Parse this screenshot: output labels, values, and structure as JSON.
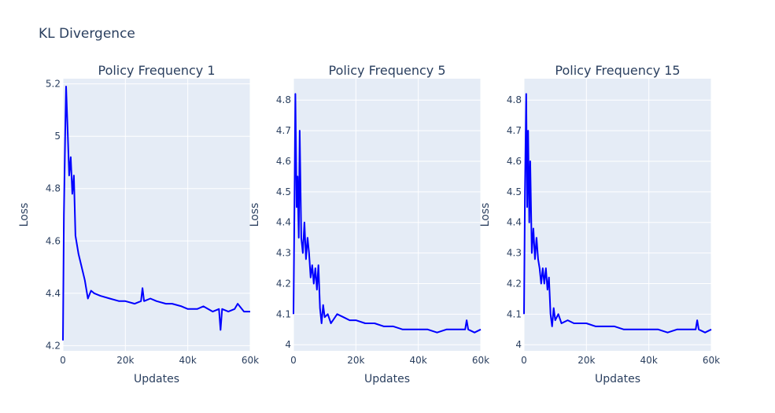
{
  "title": "KL Divergence",
  "colors": {
    "plot_background": "#e5ecf6",
    "grid": "#ffffff",
    "line": "#0000ff",
    "text": "#2a3f5f"
  },
  "chart_data": [
    {
      "type": "line",
      "title": "Policy Frequency 1",
      "xlabel": "Updates",
      "ylabel": "Loss",
      "xlim": [
        0,
        60000
      ],
      "ylim": [
        4.18,
        5.22
      ],
      "xticks": [
        0,
        20000,
        40000,
        60000
      ],
      "xtick_labels": [
        "0",
        "20k",
        "40k",
        "60k"
      ],
      "yticks": [
        4.2,
        4.4,
        4.6,
        4.8,
        5,
        5.2
      ],
      "ytick_labels": [
        "4.2",
        "4.4",
        "4.6",
        "4.8",
        "5",
        "5.2"
      ],
      "grid": true,
      "series": [
        {
          "color": "#0000ff",
          "x": [
            0,
            300,
            700,
            1000,
            1500,
            2000,
            2500,
            3000,
            3500,
            4000,
            5000,
            6000,
            7000,
            8000,
            9000,
            10000,
            12000,
            15000,
            18000,
            20000,
            23000,
            25000,
            25500,
            26000,
            28000,
            30000,
            33000,
            35000,
            38000,
            40000,
            43000,
            45000,
            48000,
            50000,
            50500,
            51000,
            53000,
            55000,
            56000,
            58000,
            60000
          ],
          "y": [
            4.22,
            4.7,
            5.0,
            5.19,
            5.02,
            4.85,
            4.92,
            4.78,
            4.85,
            4.62,
            4.55,
            4.5,
            4.45,
            4.38,
            4.41,
            4.4,
            4.39,
            4.38,
            4.37,
            4.37,
            4.36,
            4.37,
            4.42,
            4.37,
            4.38,
            4.37,
            4.36,
            4.36,
            4.35,
            4.34,
            4.34,
            4.35,
            4.33,
            4.34,
            4.26,
            4.34,
            4.33,
            4.34,
            4.36,
            4.33,
            4.33
          ]
        }
      ]
    },
    {
      "type": "line",
      "title": "Policy Frequency 5",
      "xlabel": "Updates",
      "ylabel": "Loss",
      "xlim": [
        0,
        60000
      ],
      "ylim": [
        3.98,
        4.87
      ],
      "xticks": [
        0,
        20000,
        40000,
        60000
      ],
      "xtick_labels": [
        "0",
        "20k",
        "40k",
        "60k"
      ],
      "yticks": [
        4,
        4.1,
        4.2,
        4.3,
        4.4,
        4.5,
        4.6,
        4.7,
        4.8
      ],
      "ytick_labels": [
        "4",
        "4.1",
        "4.2",
        "4.3",
        "4.4",
        "4.5",
        "4.6",
        "4.7",
        "4.8"
      ],
      "grid": true,
      "series": [
        {
          "color": "#0000ff",
          "x": [
            0,
            300,
            600,
            1000,
            1300,
            1700,
            2000,
            2500,
            3000,
            3500,
            4000,
            4500,
            5000,
            5500,
            6000,
            6500,
            7000,
            7500,
            8000,
            8500,
            9000,
            9500,
            10000,
            11000,
            12000,
            14000,
            16000,
            18000,
            20000,
            23000,
            26000,
            29000,
            32000,
            35000,
            38000,
            40000,
            43000,
            46000,
            49000,
            52000,
            55000,
            55500,
            56000,
            58000,
            60000
          ],
          "y": [
            4.1,
            4.45,
            4.82,
            4.45,
            4.55,
            4.35,
            4.7,
            4.35,
            4.3,
            4.4,
            4.28,
            4.35,
            4.3,
            4.22,
            4.26,
            4.2,
            4.25,
            4.18,
            4.26,
            4.12,
            4.07,
            4.13,
            4.09,
            4.1,
            4.07,
            4.1,
            4.09,
            4.08,
            4.08,
            4.07,
            4.07,
            4.06,
            4.06,
            4.05,
            4.05,
            4.05,
            4.05,
            4.04,
            4.05,
            4.05,
            4.05,
            4.08,
            4.05,
            4.04,
            4.05
          ]
        }
      ]
    },
    {
      "type": "line",
      "title": "Policy Frequency 15",
      "xlabel": "Updates",
      "ylabel": "Loss",
      "xlim": [
        0,
        60000
      ],
      "ylim": [
        3.98,
        4.87
      ],
      "xticks": [
        0,
        20000,
        40000,
        60000
      ],
      "xtick_labels": [
        "0",
        "20k",
        "40k",
        "60k"
      ],
      "yticks": [
        4,
        4.1,
        4.2,
        4.3,
        4.4,
        4.5,
        4.6,
        4.7,
        4.8
      ],
      "ytick_labels": [
        "4",
        "4.1",
        "4.2",
        "4.3",
        "4.4",
        "4.5",
        "4.6",
        "4.7",
        "4.8"
      ],
      "grid": true,
      "series": [
        {
          "color": "#0000ff",
          "x": [
            0,
            300,
            700,
            1000,
            1300,
            1700,
            2000,
            2500,
            3000,
            3500,
            4000,
            4500,
            5000,
            5500,
            6000,
            6500,
            7000,
            7500,
            8000,
            8500,
            9000,
            9500,
            10000,
            11000,
            12000,
            14000,
            16000,
            18000,
            20000,
            23000,
            26000,
            29000,
            32000,
            35000,
            38000,
            40000,
            43000,
            46000,
            49000,
            52000,
            55000,
            55500,
            56000,
            58000,
            60000
          ],
          "y": [
            4.1,
            4.5,
            4.82,
            4.45,
            4.7,
            4.4,
            4.6,
            4.3,
            4.38,
            4.28,
            4.35,
            4.28,
            4.25,
            4.2,
            4.25,
            4.2,
            4.25,
            4.18,
            4.22,
            4.1,
            4.06,
            4.12,
            4.08,
            4.1,
            4.07,
            4.08,
            4.07,
            4.07,
            4.07,
            4.06,
            4.06,
            4.06,
            4.05,
            4.05,
            4.05,
            4.05,
            4.05,
            4.04,
            4.05,
            4.05,
            4.05,
            4.08,
            4.05,
            4.04,
            4.05
          ]
        }
      ]
    }
  ]
}
